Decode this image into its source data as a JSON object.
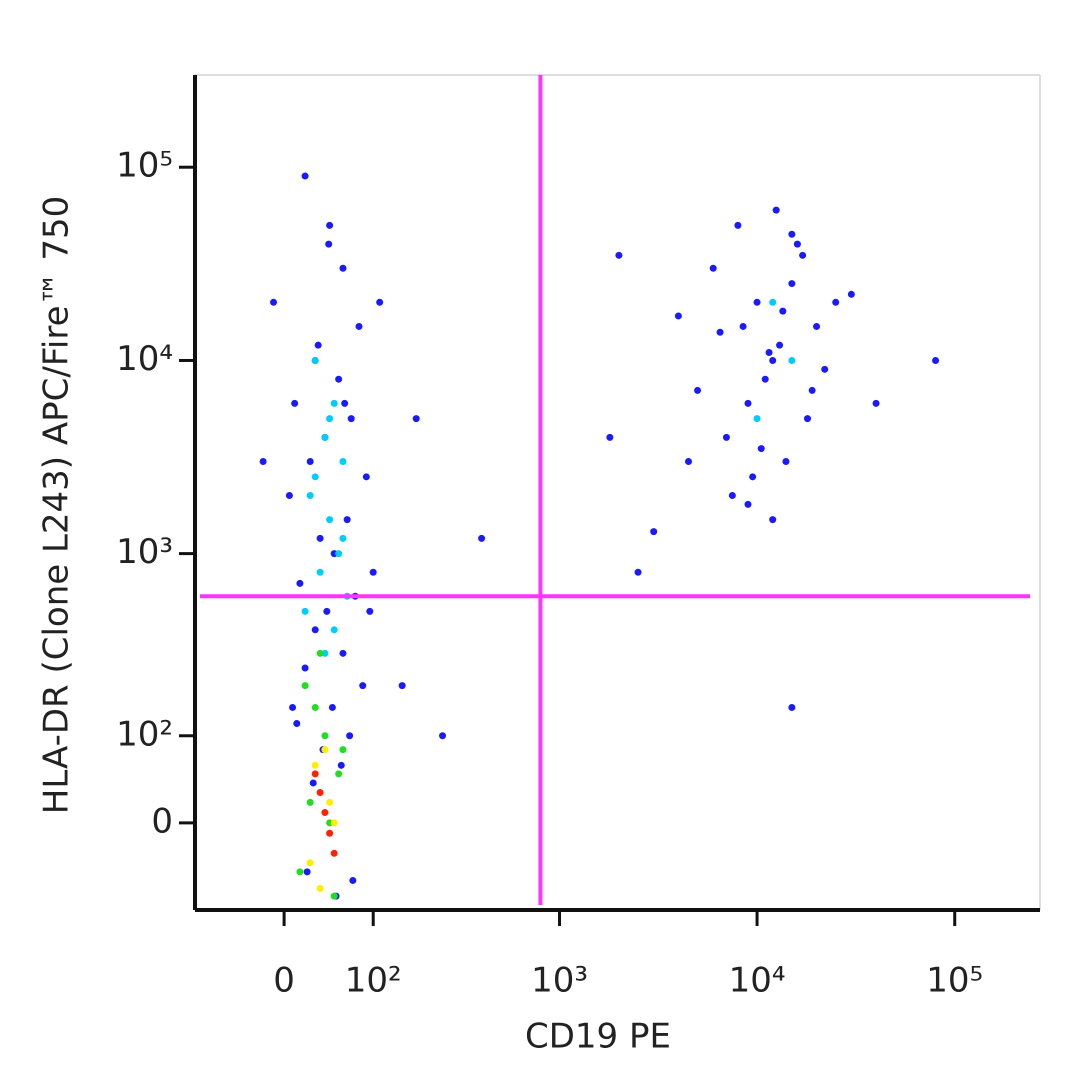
{
  "chart_data": {
    "type": "scatter",
    "xlabel": "CD19 PE",
    "ylabel": "HLA-DR (Clone L243) APC/Fire™ 750",
    "xscale": "biexponential",
    "yscale": "biexponential",
    "xlim": [
      -100,
      270000
    ],
    "ylim": [
      -100,
      300000
    ],
    "xticks": [
      0,
      {
        "value": 100,
        "label": "10²"
      },
      {
        "value": 1000,
        "label": "10³"
      },
      {
        "value": 10000,
        "label": "10⁴"
      },
      {
        "value": 100000,
        "label": "10⁵"
      }
    ],
    "yticks": [
      0,
      {
        "value": 100,
        "label": "10²"
      },
      {
        "value": 1000,
        "label": "10³"
      },
      {
        "value": 10000,
        "label": "10⁴"
      },
      {
        "value": 100000,
        "label": "10⁵"
      }
    ],
    "gates": {
      "x": 800,
      "y": 600,
      "color": "#ff33ff"
    },
    "series": [
      {
        "color": "#1a1aff",
        "x": [
          20,
          45,
          60,
          -10,
          80,
          30,
          55,
          10,
          70,
          40,
          25,
          90,
          5,
          65,
          35,
          50,
          100,
          15,
          75,
          42,
          30,
          60,
          20,
          85,
          48,
          12,
          68,
          38,
          58,
          28,
          110,
          -20,
          95,
          22,
          52,
          72,
          8,
          62,
          33,
          44,
          150,
          180,
          250,
          400,
          6000,
          8000,
          10000,
          12000,
          15000,
          20000,
          9000,
          11000,
          13000,
          7000,
          14000,
          18000,
          25000,
          5000,
          9500,
          16000,
          12500,
          8500,
          22000,
          10500,
          7500,
          13500,
          17000,
          11500,
          19000,
          6500,
          30000,
          80000,
          4500,
          2000,
          1800,
          2500,
          3000,
          4000,
          40000,
          12000,
          9000,
          15000,
          15000
        ],
        "y": [
          90000,
          50000,
          30000,
          20000,
          15000,
          10000,
          8000,
          6000,
          5000,
          4000,
          3000,
          2500,
          2000,
          1500,
          1200,
          1000,
          800,
          700,
          600,
          500,
          400,
          300,
          250,
          200,
          150,
          120,
          100,
          80,
          60,
          40,
          20000,
          3000,
          500,
          -50,
          -80,
          -60,
          150,
          6000,
          12000,
          40000,
          200,
          5000,
          100,
          1200,
          30000,
          50000,
          20000,
          10000,
          25000,
          15000,
          6000,
          8000,
          12000,
          4000,
          3000,
          5000,
          20000,
          7000,
          2500,
          40000,
          60000,
          15000,
          9000,
          3500,
          2000,
          18000,
          35000,
          11000,
          7000,
          14000,
          22000,
          10000,
          3000,
          35000,
          4000,
          800,
          1300,
          17000,
          6000,
          1500,
          1800,
          45000,
          150
        ]
      },
      {
        "color": "#00ccff",
        "x": [
          30,
          50,
          40,
          60,
          25,
          45,
          55,
          35,
          65,
          20,
          50,
          40,
          30,
          60,
          45,
          12000,
          15000,
          10000
        ],
        "y": [
          10000,
          6000,
          4000,
          3000,
          2000,
          1500,
          1000,
          800,
          600,
          500,
          400,
          300,
          2500,
          1200,
          5000,
          20000,
          10000,
          5000
        ]
      },
      {
        "color": "#22dd22",
        "x": [
          20,
          40,
          55,
          30,
          45,
          15,
          60,
          35,
          50,
          25
        ],
        "y": [
          200,
          100,
          50,
          150,
          0,
          -50,
          80,
          300,
          -80,
          20
        ]
      },
      {
        "color": "#ffee00",
        "x": [
          30,
          45,
          25,
          50,
          40,
          35
        ],
        "y": [
          60,
          20,
          -40,
          0,
          80,
          -70
        ]
      },
      {
        "color": "#ff2200",
        "x": [
          35,
          45,
          40,
          30,
          50
        ],
        "y": [
          30,
          -10,
          10,
          50,
          -30
        ]
      }
    ]
  }
}
